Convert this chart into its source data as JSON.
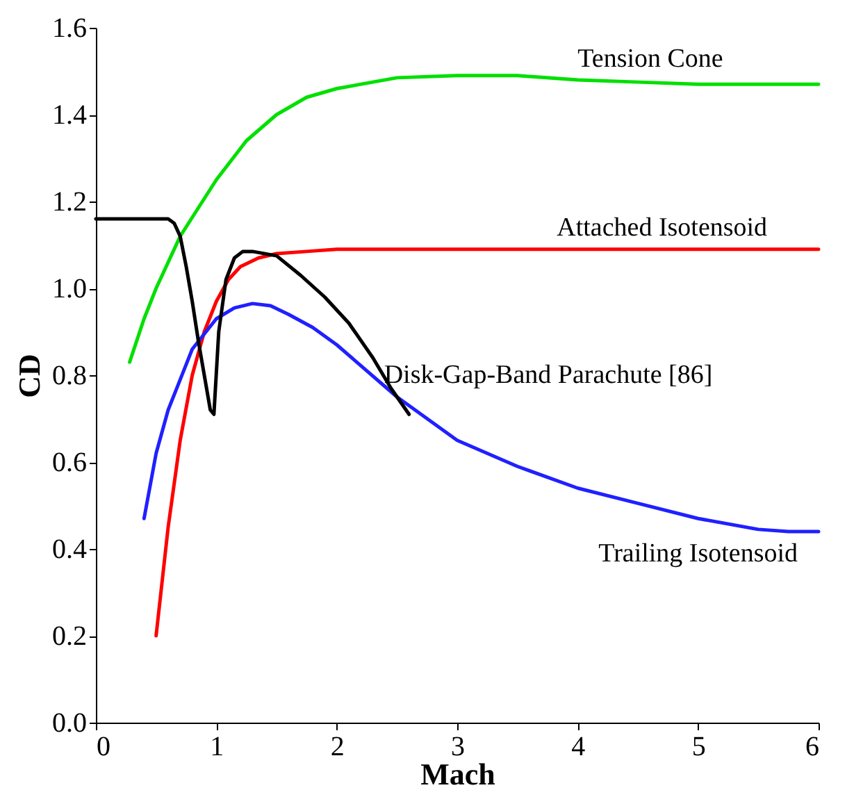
{
  "chart_data": {
    "type": "line",
    "xlabel": "Mach",
    "ylabel": "CD",
    "xlim": [
      0,
      6
    ],
    "ylim": [
      0,
      1.6
    ],
    "xticks": [
      0,
      1,
      2,
      3,
      4,
      5,
      6
    ],
    "yticks": [
      {
        "value": 0,
        "label": "0.0"
      },
      {
        "value": 0.2,
        "label": "0.2"
      },
      {
        "value": 0.4,
        "label": "0.4"
      },
      {
        "value": 0.6,
        "label": "0.6"
      },
      {
        "value": 0.8,
        "label": "0.8"
      },
      {
        "value": 1.0,
        "label": "1.0"
      },
      {
        "value": 1.2,
        "label": "1.2"
      },
      {
        "value": 1.4,
        "label": "1.4"
      },
      {
        "value": 1.6,
        "label": "1.6"
      }
    ],
    "grid": false,
    "marker": "none",
    "line_style": "solid",
    "series": [
      {
        "color": "#00e000",
        "x": [
          0.28,
          0.4,
          0.5,
          0.7,
          1.0,
          1.25,
          1.5,
          1.75,
          2.0,
          2.5,
          3.0,
          3.5,
          4.0,
          4.5,
          5.0,
          5.5,
          6.0
        ],
        "values": [
          0.83,
          0.93,
          1.0,
          1.12,
          1.25,
          1.34,
          1.4,
          1.44,
          1.46,
          1.485,
          1.49,
          1.49,
          1.48,
          1.475,
          1.47,
          1.47,
          1.47
        ]
      },
      {
        "color": "#ff0000",
        "x": [
          0.5,
          0.6,
          0.7,
          0.8,
          0.9,
          1.0,
          1.1,
          1.2,
          1.35,
          1.5,
          1.75,
          2.0,
          3.0,
          4.0,
          5.0,
          6.0
        ],
        "values": [
          0.2,
          0.45,
          0.65,
          0.8,
          0.9,
          0.97,
          1.02,
          1.05,
          1.07,
          1.08,
          1.085,
          1.09,
          1.09,
          1.09,
          1.09,
          1.09
        ]
      },
      {
        "color": "#2020ff",
        "x": [
          0.4,
          0.5,
          0.6,
          0.8,
          1.0,
          1.15,
          1.3,
          1.45,
          1.6,
          1.8,
          2.0,
          2.5,
          3.0,
          3.5,
          4.0,
          4.5,
          5.0,
          5.5,
          5.75,
          6.0
        ],
        "values": [
          0.47,
          0.62,
          0.72,
          0.86,
          0.93,
          0.955,
          0.965,
          0.96,
          0.94,
          0.91,
          0.87,
          0.75,
          0.65,
          0.59,
          0.54,
          0.505,
          0.47,
          0.445,
          0.44,
          0.44
        ]
      },
      {
        "color": "#000000",
        "x": [
          0.0,
          0.3,
          0.6,
          0.65,
          0.7,
          0.75,
          0.8,
          0.85,
          0.9,
          0.95,
          0.98,
          1.02,
          1.08,
          1.15,
          1.22,
          1.3,
          1.5,
          1.7,
          1.9,
          2.1,
          2.3,
          2.45,
          2.6
        ],
        "values": [
          1.16,
          1.16,
          1.16,
          1.15,
          1.12,
          1.05,
          0.97,
          0.88,
          0.8,
          0.72,
          0.71,
          0.9,
          1.02,
          1.07,
          1.085,
          1.085,
          1.075,
          1.03,
          0.98,
          0.92,
          0.84,
          0.77,
          0.71
        ]
      }
    ],
    "annotations": [
      {
        "text": "Tension Cone",
        "x": 4.5,
        "y": 1.475
      },
      {
        "text": "Attached Isotensoid",
        "x": 4.7,
        "y": 1.09
      },
      {
        "text": "Disk-Gap-Band Parachute [86]",
        "x": 2.3,
        "y": 0.84
      },
      {
        "text": "Trailing Isotensoid",
        "x": 5.0,
        "y": 0.47
      }
    ]
  }
}
